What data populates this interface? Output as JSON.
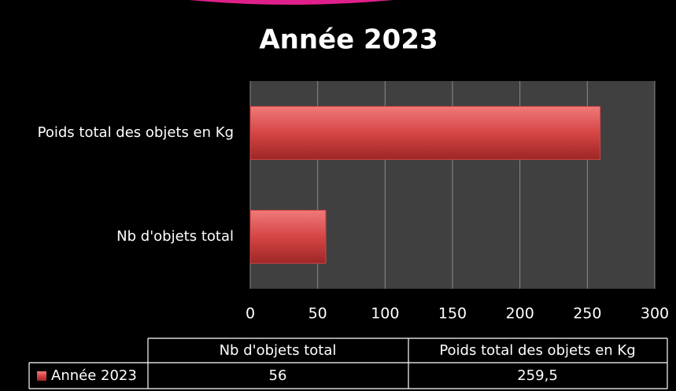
{
  "chart_data": {
    "type": "bar",
    "orientation": "horizontal",
    "title": "Année 2023",
    "categories": [
      "Nb d'objets total",
      "Poids total des objets en Kg"
    ],
    "series": [
      {
        "name": "Année 2023",
        "color": "#d64545",
        "values": [
          56,
          259.5
        ],
        "value_labels": [
          "56",
          "259,5"
        ]
      }
    ],
    "xlim": [
      0,
      300
    ],
    "xticks": [
      0,
      50,
      100,
      150,
      200,
      250,
      300
    ],
    "grid": true
  }
}
